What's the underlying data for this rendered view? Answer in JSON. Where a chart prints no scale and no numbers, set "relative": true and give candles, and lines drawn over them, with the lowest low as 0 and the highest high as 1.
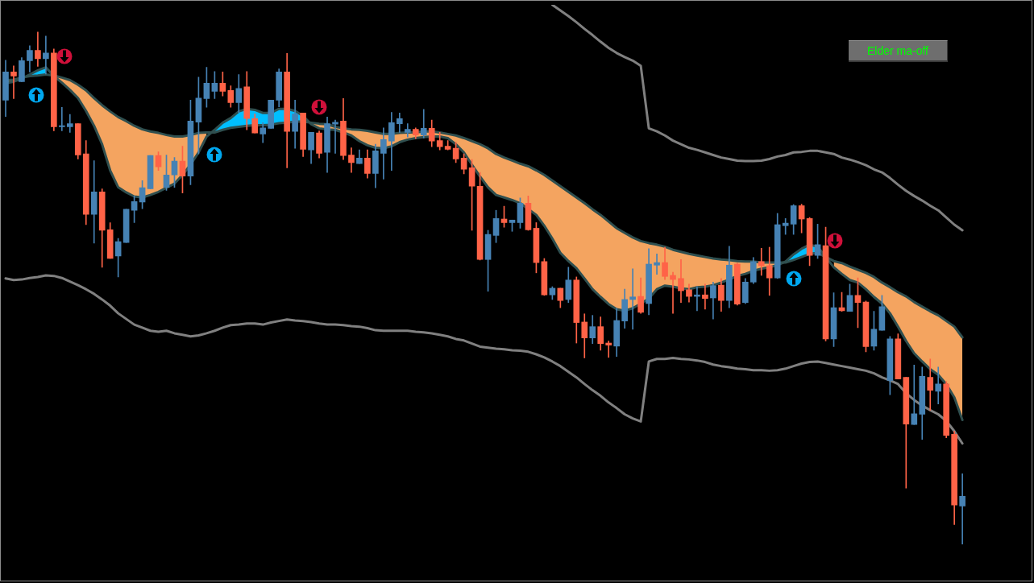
{
  "chart_data": {
    "type": "candlestick",
    "relative": true,
    "annotations": [
      "Elder ma-off"
    ],
    "categories": [
      null,
      null,
      null,
      null,
      null,
      null,
      null,
      null,
      null,
      null,
      null,
      null,
      null,
      null,
      null,
      null,
      null,
      null,
      null,
      null,
      null,
      null,
      null,
      null,
      null,
      null,
      null,
      null,
      null,
      null,
      null,
      null,
      null,
      null,
      null,
      null,
      null,
      null,
      null,
      null,
      null,
      null,
      null,
      null,
      null,
      null,
      null,
      null,
      null,
      null,
      null,
      null,
      null,
      null,
      null,
      null,
      null,
      null,
      null,
      null,
      null,
      null,
      null,
      null,
      null,
      null,
      null,
      null,
      null,
      null,
      null,
      null,
      null,
      null,
      null,
      null,
      null,
      null,
      null,
      null,
      null,
      null,
      null,
      null,
      null,
      null,
      null,
      null,
      null,
      null,
      null,
      null,
      null,
      null,
      null,
      null,
      null,
      null,
      null,
      null,
      null,
      null,
      null,
      null,
      null,
      null,
      null,
      null,
      null,
      null,
      null,
      null,
      null,
      null,
      null,
      null,
      null,
      null,
      null,
      null
    ],
    "ohlc": [
      [
        0.867,
        0.945,
        0.835,
        0.922
      ],
      [
        0.922,
        0.934,
        0.87,
        0.914
      ],
      [
        0.903,
        0.95,
        0.903,
        0.944
      ],
      [
        0.944,
        0.973,
        0.922,
        0.964
      ],
      [
        0.964,
        1,
        0.933,
        0.948
      ],
      [
        0.948,
        0.992,
        0.918,
        0.959
      ],
      [
        0.959,
        0.967,
        0.807,
        0.815
      ],
      [
        0.815,
        0.853,
        0.807,
        0.817
      ],
      [
        0.815,
        0.839,
        0.804,
        0.821
      ],
      [
        0.821,
        0.821,
        0.752,
        0.76
      ],
      [
        0.762,
        0.788,
        0.624,
        0.644
      ],
      [
        0.644,
        0.749,
        0.588,
        0.688
      ],
      [
        0.688,
        0.694,
        0.541,
        0.613
      ],
      [
        0.614,
        0.628,
        0.558,
        0.558
      ],
      [
        0.563,
        0.597,
        0.522,
        0.591
      ],
      [
        0.589,
        0.654,
        0.589,
        0.654
      ],
      [
        0.652,
        0.68,
        0.628,
        0.669
      ],
      [
        0.668,
        0.71,
        0.655,
        0.696
      ],
      [
        0.694,
        0.759,
        0.694,
        0.759
      ],
      [
        0.759,
        0.766,
        0.73,
        0.737
      ],
      [
        0.697,
        0.76,
        0.691,
        0.721
      ],
      [
        0.721,
        0.755,
        0.697,
        0.748
      ],
      [
        0.748,
        0.777,
        0.686,
        0.719
      ],
      [
        0.719,
        0.867,
        0.702,
        0.826
      ],
      [
        0.824,
        0.912,
        0.762,
        0.871
      ],
      [
        0.87,
        0.931,
        0.853,
        0.9
      ],
      [
        0.884,
        0.923,
        0.87,
        0.9
      ],
      [
        0.9,
        0.922,
        0.875,
        0.884
      ],
      [
        0.886,
        0.895,
        0.853,
        0.862
      ],
      [
        0.862,
        0.917,
        0.843,
        0.89
      ],
      [
        0.893,
        0.923,
        0.809,
        0.831
      ],
      [
        0.831,
        0.84,
        0.803,
        0.803
      ],
      [
        0.801,
        0.823,
        0.784,
        0.813
      ],
      [
        0.812,
        0.867,
        0.812,
        0.867
      ],
      [
        0.867,
        0.928,
        0.854,
        0.922
      ],
      [
        0.922,
        0.958,
        0.735,
        0.806
      ],
      [
        0.806,
        0.867,
        0.773,
        0.84
      ],
      [
        0.842,
        0.842,
        0.757,
        0.771
      ],
      [
        0.77,
        0.804,
        0.743,
        0.804
      ],
      [
        0.803,
        0.807,
        0.754,
        0.763
      ],
      [
        0.765,
        0.834,
        0.726,
        0.821
      ],
      [
        0.82,
        0.828,
        0.763,
        0.824
      ],
      [
        0.826,
        0.87,
        0.751,
        0.759
      ],
      [
        0.76,
        0.774,
        0.726,
        0.745
      ],
      [
        0.743,
        0.77,
        0.743,
        0.754
      ],
      [
        0.754,
        0.77,
        0.715,
        0.724
      ],
      [
        0.724,
        0.781,
        0.696,
        0.768
      ],
      [
        0.763,
        0.813,
        0.713,
        0.79
      ],
      [
        0.787,
        0.843,
        0.73,
        0.823
      ],
      [
        0.821,
        0.842,
        0.804,
        0.831
      ],
      [
        0.804,
        0.821,
        0.795,
        0.81
      ],
      [
        0.81,
        0.813,
        0.792,
        0.799
      ],
      [
        0.799,
        0.849,
        0.793,
        0.812
      ],
      [
        0.812,
        0.828,
        0.776,
        0.787
      ],
      [
        0.788,
        0.804,
        0.77,
        0.776
      ],
      [
        0.777,
        0.788,
        0.77,
        0.771
      ],
      [
        0.773,
        0.785,
        0.745,
        0.752
      ],
      [
        0.754,
        0.762,
        0.723,
        0.732
      ],
      [
        0.735,
        0.751,
        0.613,
        0.699
      ],
      [
        0.699,
        0.726,
        0.555,
        0.556
      ],
      [
        0.556,
        0.613,
        0.494,
        0.605
      ],
      [
        0.603,
        0.652,
        0.589,
        0.636
      ],
      [
        0.635,
        0.66,
        0.619,
        0.628
      ],
      [
        0.628,
        0.633,
        0.611,
        0.633
      ],
      [
        0.628,
        0.676,
        0.617,
        0.666
      ],
      [
        0.666,
        0.68,
        0.613,
        0.614
      ],
      [
        0.617,
        0.628,
        0.53,
        0.55
      ],
      [
        0.552,
        0.558,
        0.486,
        0.487
      ],
      [
        0.487,
        0.503,
        0.478,
        0.5
      ],
      [
        0.5,
        0.5,
        0.462,
        0.476
      ],
      [
        0.478,
        0.541,
        0.472,
        0.516
      ],
      [
        0.516,
        0.522,
        0.393,
        0.433
      ],
      [
        0.434,
        0.45,
        0.364,
        0.403
      ],
      [
        0.403,
        0.447,
        0.392,
        0.425
      ],
      [
        0.425,
        0.444,
        0.379,
        0.392
      ],
      [
        0.393,
        0.397,
        0.365,
        0.389
      ],
      [
        0.387,
        0.461,
        0.367,
        0.437
      ],
      [
        0.436,
        0.498,
        0.422,
        0.478
      ],
      [
        0.478,
        0.538,
        0.42,
        0.483
      ],
      [
        0.484,
        0.52,
        0.451,
        0.453
      ],
      [
        0.47,
        0.577,
        0.448,
        0.547
      ],
      [
        0.545,
        0.567,
        0.527,
        0.55
      ],
      [
        0.55,
        0.58,
        0.517,
        0.523
      ],
      [
        0.525,
        0.531,
        0.451,
        0.517
      ],
      [
        0.519,
        0.556,
        0.472,
        0.495
      ],
      [
        0.497,
        0.508,
        0.473,
        0.484
      ],
      [
        0.484,
        0.503,
        0.456,
        0.487
      ],
      [
        0.487,
        0.508,
        0.459,
        0.48
      ],
      [
        0.481,
        0.512,
        0.44,
        0.505
      ],
      [
        0.506,
        0.519,
        0.455,
        0.476
      ],
      [
        0.476,
        0.582,
        0.462,
        0.545
      ],
      [
        0.547,
        0.549,
        0.467,
        0.469
      ],
      [
        0.472,
        0.519,
        0.47,
        0.512
      ],
      [
        0.512,
        0.56,
        0.509,
        0.552
      ],
      [
        0.552,
        0.578,
        0.525,
        0.544
      ],
      [
        0.544,
        0.58,
        0.486,
        0.52
      ],
      [
        0.52,
        0.646,
        0.519,
        0.624
      ],
      [
        0.622,
        0.636,
        0.605,
        0.627
      ],
      [
        0.625,
        0.663,
        0.605,
        0.661
      ],
      [
        0.661,
        0.664,
        0.608,
        0.635
      ],
      [
        0.636,
        0.638,
        0.544,
        0.564
      ],
      [
        0.564,
        0.625,
        0.558,
        0.585
      ],
      [
        0.583,
        0.619,
        0.397,
        0.401
      ],
      [
        0.401,
        0.491,
        0.386,
        0.462
      ],
      [
        0.462,
        0.492,
        0.455,
        0.456
      ],
      [
        0.455,
        0.508,
        0.455,
        0.486
      ],
      [
        0.486,
        0.52,
        0.423,
        0.472
      ],
      [
        0.473,
        0.475,
        0.376,
        0.386
      ],
      [
        0.387,
        0.455,
        0.379,
        0.42
      ],
      [
        0.418,
        0.486,
        0.418,
        0.464
      ],
      [
        0.32,
        0.406,
        0.292,
        0.401
      ],
      [
        0.401,
        0.411,
        0.323,
        0.323
      ],
      [
        0.326,
        0.326,
        0.11,
        0.235
      ],
      [
        0.234,
        0.35,
        0.234,
        0.255
      ],
      [
        0.254,
        0.346,
        0.205,
        0.328
      ],
      [
        0.326,
        0.362,
        0.262,
        0.301
      ],
      [
        0.299,
        0.346,
        0.274,
        0.313
      ],
      [
        0.313,
        0.318,
        0.208,
        0.213
      ],
      [
        0.215,
        0.221,
        0.039,
        0.077
      ],
      [
        0.075,
        0.138,
        0,
        0.094
      ]
    ],
    "colors": [
      "#4682b4",
      "#ff6347",
      "#4682b4",
      "#4682b4",
      "#ff6347",
      "#4682b4",
      "#ff6347",
      "#4682b4",
      "#4682b4",
      "#ff6347",
      "#ff6347",
      "#4682b4",
      "#ff6347",
      "#ff6347",
      "#4682b4",
      "#4682b4",
      "#4682b4",
      "#4682b4",
      "#4682b4",
      "#ff6347",
      "#4682b4",
      "#4682b4",
      "#ff6347",
      "#4682b4",
      "#4682b4",
      "#4682b4",
      "#4682b4",
      "#ff6347",
      "#ff6347",
      "#4682b4",
      "#ff6347",
      "#ff6347",
      "#4682b4",
      "#4682b4",
      "#4682b4",
      "#ff6347",
      "#4682b4",
      "#ff6347",
      "#4682b4",
      "#ff6347",
      "#4682b4",
      "#4682b4",
      "#ff6347",
      "#ff6347",
      "#4682b4",
      "#ff6347",
      "#4682b4",
      "#4682b4",
      "#4682b4",
      "#4682b4",
      "#4682b4",
      "#ff6347",
      "#4682b4",
      "#ff6347",
      "#ff6347",
      "#ff6347",
      "#ff6347",
      "#ff6347",
      "#ff6347",
      "#ff6347",
      "#4682b4",
      "#4682b4",
      "#ff6347",
      "#4682b4",
      "#4682b4",
      "#ff6347",
      "#ff6347",
      "#ff6347",
      "#4682b4",
      "#ff6347",
      "#4682b4",
      "#ff6347",
      "#ff6347",
      "#4682b4",
      "#ff6347",
      "#ff6347",
      "#4682b4",
      "#4682b4",
      "#4682b4",
      "#ff6347",
      "#4682b4",
      "#4682b4",
      "#ff6347",
      "#ff6347",
      "#ff6347",
      "#ff6347",
      "#4682b4",
      "#ff6347",
      "#4682b4",
      "#ff6347",
      "#4682b4",
      "#ff6347",
      "#4682b4",
      "#4682b4",
      "#ff6347",
      "#ff6347",
      "#4682b4",
      "#4682b4",
      "#4682b4",
      "#ff6347",
      "#ff6347",
      "#4682b4",
      "#ff6347",
      "#4682b4",
      "#ff6347",
      "#4682b4",
      "#ff6347",
      "#ff6347",
      "#4682b4",
      "#4682b4",
      "#4682b4",
      "#ff6347",
      "#ff6347",
      "#4682b4",
      "#4682b4",
      "#ff6347",
      "#4682b4",
      "#ff6347",
      "#ff6347",
      "#4682b4"
    ],
    "series": [
      {
        "type": "line",
        "color": "#808080",
        "values": [
          null,
          null,
          null,
          null,
          null,
          null,
          null,
          null,
          null,
          null,
          null,
          null,
          null,
          null,
          null,
          null,
          null,
          null,
          null,
          null,
          null,
          null,
          null,
          null,
          null,
          null,
          null,
          null,
          null,
          null,
          null,
          null,
          null,
          null,
          null,
          null,
          null,
          null,
          null,
          null,
          null,
          null,
          null,
          null,
          null,
          null,
          null,
          null,
          null,
          null,
          null,
          null,
          null,
          null,
          null,
          null,
          null,
          null,
          null,
          null,
          null,
          null,
          null,
          null,
          null,
          null,
          null,
          null,
          1.053,
          1.042,
          1.031,
          1.019,
          1.006,
          0.994,
          0.981,
          0.969,
          0.959,
          0.951,
          0.944,
          0.934,
          0.812,
          0.806,
          0.798,
          0.788,
          0.781,
          0.774,
          0.77,
          0.765,
          0.76,
          0.755,
          0.752,
          0.749,
          0.748,
          0.748,
          0.749,
          0.752,
          0.757,
          0.76,
          0.765,
          0.766,
          0.768,
          0.768,
          0.765,
          0.762,
          0.755,
          0.751,
          0.746,
          0.74,
          0.732,
          0.726,
          0.715,
          0.702,
          0.69,
          0.68,
          0.671,
          0.661,
          0.652,
          0.638,
          0.624,
          0.613
        ]
      },
      {
        "type": "line",
        "color": "#808080",
        "values": [
          0.519,
          0.516,
          0.517,
          0.52,
          0.522,
          0.525,
          0.524,
          0.52,
          0.513,
          0.506,
          0.498,
          0.489,
          0.478,
          0.466,
          0.451,
          0.44,
          0.429,
          0.423,
          0.417,
          0.415,
          0.417,
          0.412,
          0.409,
          0.406,
          0.408,
          0.412,
          0.417,
          0.423,
          0.428,
          0.429,
          0.431,
          0.431,
          0.429,
          0.433,
          0.436,
          0.439,
          0.437,
          0.436,
          0.434,
          0.431,
          0.429,
          0.429,
          0.428,
          0.426,
          0.425,
          0.422,
          0.418,
          0.417,
          0.417,
          0.417,
          0.417,
          0.415,
          0.414,
          0.412,
          0.409,
          0.406,
          0.401,
          0.398,
          0.392,
          0.386,
          0.384,
          0.382,
          0.381,
          0.379,
          0.378,
          0.376,
          0.371,
          0.365,
          0.357,
          0.348,
          0.337,
          0.326,
          0.313,
          0.301,
          0.29,
          0.277,
          0.266,
          0.254,
          0.246,
          0.24,
          0.357,
          0.362,
          0.362,
          0.364,
          0.362,
          0.361,
          0.359,
          0.356,
          0.351,
          0.348,
          0.346,
          0.343,
          0.342,
          0.34,
          0.34,
          0.339,
          0.34,
          0.343,
          0.348,
          0.353,
          0.356,
          0.357,
          0.354,
          0.351,
          0.348,
          0.345,
          0.342,
          0.339,
          0.334,
          0.326,
          0.32,
          0.313,
          0.295,
          0.282,
          0.271,
          0.262,
          0.254,
          0.241,
          0.221,
          0.197
        ]
      },
      {
        "type": "line",
        "color": "#2f4f4f",
        "values": [
          0.906,
          0.907,
          0.911,
          0.914,
          0.915,
          0.917,
          0.915,
          0.911,
          0.906,
          0.897,
          0.886,
          0.871,
          0.857,
          0.845,
          0.834,
          0.826,
          0.817,
          0.81,
          0.806,
          0.803,
          0.799,
          0.796,
          0.796,
          0.799,
          0.803,
          0.804,
          0.804,
          0.809,
          0.813,
          0.815,
          0.817,
          0.818,
          0.818,
          0.819,
          0.822,
          0.823,
          0.825,
          0.825,
          0.823,
          0.821,
          0.82,
          0.815,
          0.812,
          0.81,
          0.809,
          0.807,
          0.804,
          0.801,
          0.801,
          0.803,
          0.804,
          0.804,
          0.806,
          0.806,
          0.804,
          0.801,
          0.798,
          0.793,
          0.787,
          0.781,
          0.773,
          0.762,
          0.755,
          0.749,
          0.743,
          0.738,
          0.73,
          0.721,
          0.71,
          0.699,
          0.688,
          0.677,
          0.666,
          0.654,
          0.643,
          0.63,
          0.617,
          0.608,
          0.599,
          0.592,
          0.588,
          0.585,
          0.581,
          0.575,
          0.571,
          0.567,
          0.564,
          0.561,
          0.558,
          0.556,
          0.555,
          0.553,
          0.552,
          0.552,
          0.55,
          0.55,
          0.55,
          0.55,
          0.555,
          0.561,
          0.567,
          0.569,
          null,
          0.553,
          0.549,
          0.542,
          0.536,
          0.53,
          0.522,
          0.511,
          0.502,
          0.492,
          0.484,
          0.473,
          0.464,
          0.455,
          0.447,
          0.436,
          0.425,
          0.404
        ]
      },
      {
        "type": "line",
        "color": "#2f4f4f",
        "values": [
          0.9,
          0.903,
          0.909,
          0.917,
          0.925,
          0.931,
          0.914,
          0.901,
          0.887,
          0.871,
          0.846,
          0.817,
          0.781,
          0.73,
          0.697,
          0.687,
          0.679,
          0.677,
          0.682,
          0.688,
          0.696,
          0.704,
          0.721,
          0.741,
          0.765,
          0.796,
          0.809,
          0.823,
          0.832,
          0.845,
          0.85,
          0.848,
          0.842,
          0.842,
          0.85,
          0.85,
          0.846,
          0.836,
          0.82,
          0.812,
          0.81,
          0.809,
          0.804,
          0.798,
          0.787,
          0.779,
          0.774,
          0.773,
          0.777,
          0.785,
          0.79,
          0.793,
          0.795,
          0.796,
          0.796,
          0.793,
          0.781,
          0.765,
          0.741,
          0.718,
          0.697,
          0.682,
          0.677,
          0.672,
          0.666,
          null,
          0.643,
          0.622,
          0.597,
          0.569,
          0.553,
          0.539,
          0.519,
          0.498,
          0.483,
          0.469,
          0.459,
          0.456,
          0.461,
          0.47,
          0.48,
          0.498,
          0.505,
          0.503,
          0.5,
          0.498,
          0.502,
          0.503,
          0.506,
          0.511,
          0.517,
          0.524,
          0.528,
          0.534,
          0.538,
          0.541,
          0.545,
          0.552,
          0.566,
          0.577,
          0.585,
          0.581,
          null,
          0.541,
          0.528,
          0.516,
          0.511,
          0.498,
          0.483,
          0.47,
          0.451,
          0.425,
          0.397,
          0.373,
          0.357,
          0.342,
          0.331,
          0.313,
          0.287,
          0.243
        ]
      },
      {
        "type": "line",
        "color": "#f4a460",
        "values": [
          null,
          null,
          null,
          null,
          null,
          null,
          null,
          null,
          null,
          null,
          null,
          null,
          null,
          null,
          null,
          null,
          null,
          null,
          null,
          null,
          null,
          null,
          null,
          null,
          null,
          null,
          null,
          null,
          null,
          null,
          null,
          null,
          null,
          null,
          null,
          null,
          null,
          null,
          null,
          null,
          null,
          null,
          null,
          null,
          null,
          null,
          null,
          null,
          null,
          null,
          null,
          null,
          null,
          null,
          null,
          null,
          null,
          null,
          null,
          null,
          null,
          null,
          null,
          null,
          null,
          null,
          null,
          null,
          null,
          null,
          null,
          null,
          null,
          null,
          null,
          null,
          null,
          null,
          null,
          null,
          null,
          null,
          null,
          null,
          null,
          null,
          null,
          null,
          null,
          null,
          null,
          null,
          null,
          null,
          null,
          null,
          null,
          null,
          null,
          null,
          null,
          null,
          null,
          null,
          null,
          null,
          null,
          null,
          null,
          null,
          null,
          null,
          null,
          null,
          null,
          null,
          null,
          null,
          null,
          null
        ],
        "lower": [
          0.9,
          0.903,
          0.909,
          null,
          null,
          null,
          0.914,
          0.901,
          0.887,
          0.871,
          0.846,
          0.817,
          0.781,
          0.73,
          0.697,
          0.687,
          0.679,
          0.677,
          0.682,
          0.688,
          0.696,
          0.704,
          0.721,
          0.741,
          0.765,
          0.796,
          null,
          null,
          null,
          null,
          null,
          null,
          null,
          null,
          null,
          null,
          null,
          null,
          0.82,
          0.812,
          0.81,
          0.809,
          0.804,
          0.798,
          0.787,
          0.779,
          0.774,
          0.773,
          0.777,
          0.785,
          0.79,
          0.793,
          0.795,
          0.796,
          0.796,
          0.793,
          0.781,
          0.765,
          0.741,
          0.718,
          0.697,
          0.682,
          0.677,
          0.672,
          0.666,
          0.658,
          0.643,
          0.622,
          0.597,
          0.569,
          0.553,
          0.539,
          0.519,
          0.498,
          0.483,
          0.469,
          0.459,
          0.456,
          0.461,
          0.47,
          0.48,
          0.498,
          0.505,
          0.503,
          0.5,
          0.498,
          0.502,
          0.503,
          0.506,
          0.511,
          0.517,
          0.524,
          0.528,
          0.534,
          0.538,
          0.541,
          0.545,
          null,
          null,
          null,
          null,
          null,
          null,
          0.541,
          0.528,
          0.516,
          0.511,
          0.498,
          0.483,
          0.47,
          0.451,
          0.425,
          0.397,
          0.373,
          0.357,
          0.342,
          0.331,
          0.313,
          0.287,
          0.243
        ],
        "upper": [
          0.906,
          0.907,
          0.911,
          null,
          null,
          null,
          0.915,
          0.911,
          0.906,
          0.897,
          0.886,
          0.871,
          0.857,
          0.845,
          0.834,
          0.826,
          0.817,
          0.81,
          0.806,
          0.803,
          0.799,
          0.796,
          0.796,
          0.799,
          0.803,
          0.804,
          null,
          null,
          null,
          null,
          null,
          null,
          null,
          null,
          null,
          null,
          null,
          null,
          0.823,
          0.821,
          0.82,
          0.815,
          0.812,
          0.81,
          0.809,
          0.807,
          0.804,
          0.801,
          0.801,
          0.803,
          0.804,
          0.804,
          0.806,
          0.806,
          0.804,
          0.801,
          0.798,
          0.793,
          0.787,
          0.781,
          0.773,
          0.762,
          0.755,
          0.749,
          0.743,
          0.738,
          0.73,
          0.721,
          0.71,
          0.699,
          0.688,
          0.677,
          0.666,
          0.654,
          0.643,
          0.63,
          0.617,
          0.608,
          0.599,
          0.592,
          0.588,
          0.585,
          0.581,
          0.575,
          0.571,
          0.567,
          0.564,
          0.561,
          0.558,
          0.556,
          0.555,
          0.553,
          0.552,
          0.552,
          0.55,
          0.55,
          0.55,
          null,
          null,
          null,
          null,
          null,
          null,
          0.553,
          0.549,
          0.542,
          0.536,
          0.53,
          0.522,
          0.511,
          0.502,
          0.492,
          0.484,
          0.473,
          0.464,
          0.455,
          0.447,
          0.436,
          0.425,
          0.404
        ]
      },
      {
        "type": "line",
        "color": "#00bfff",
        "values": [
          null,
          null,
          null,
          null,
          null,
          null,
          null,
          null,
          null,
          null,
          null,
          null,
          null,
          null,
          null,
          null,
          null,
          null,
          null,
          null,
          null,
          null,
          null,
          null,
          null,
          null,
          null,
          null,
          null,
          null,
          null,
          null,
          null,
          null,
          null,
          null,
          null,
          null,
          null,
          null,
          null,
          null,
          null,
          null,
          null,
          null,
          null,
          null,
          null,
          null,
          null,
          null,
          null,
          null,
          null,
          null,
          null,
          null,
          null,
          null,
          null,
          null,
          null,
          null,
          null,
          null,
          null,
          null,
          null,
          null,
          null,
          null,
          null,
          null,
          null,
          null,
          null,
          null,
          null,
          null,
          null,
          null,
          null,
          null,
          null,
          null,
          null,
          null,
          null,
          null,
          null,
          null,
          null,
          null,
          null,
          null,
          null,
          null,
          null,
          null,
          null,
          null,
          null,
          null,
          null,
          null,
          null,
          null,
          null,
          null,
          null,
          null,
          null,
          null,
          null,
          null,
          null,
          null,
          null,
          null
        ],
        "lower": [
          null,
          null,
          null,
          0.914,
          0.915,
          0.917,
          null,
          null,
          null,
          null,
          null,
          null,
          null,
          null,
          null,
          null,
          null,
          null,
          null,
          null,
          null,
          null,
          null,
          null,
          null,
          null,
          0.804,
          0.809,
          0.813,
          0.815,
          0.817,
          0.818,
          0.818,
          0.819,
          0.822,
          0.823,
          0.825,
          0.825,
          null,
          null,
          null,
          null,
          null,
          null,
          null,
          null,
          null,
          null,
          null,
          null,
          null,
          null,
          null,
          null,
          null,
          null,
          null,
          null,
          null,
          null,
          null,
          null,
          null,
          null,
          null,
          null,
          null,
          null,
          null,
          null,
          null,
          null,
          null,
          null,
          null,
          null,
          null,
          null,
          null,
          null,
          null,
          null,
          null,
          null,
          null,
          null,
          null,
          null,
          null,
          null,
          null,
          null,
          null,
          null,
          null,
          null,
          null,
          0.55,
          0.555,
          0.561,
          0.567,
          0.569,
          null,
          null,
          null,
          null,
          null,
          null,
          null,
          null,
          null,
          null,
          null,
          null,
          null,
          null,
          null,
          null,
          null,
          null
        ],
        "upper": [
          null,
          null,
          null,
          0.917,
          0.925,
          0.931,
          null,
          null,
          null,
          null,
          null,
          null,
          null,
          null,
          null,
          null,
          null,
          null,
          null,
          null,
          null,
          null,
          null,
          null,
          null,
          null,
          0.809,
          0.823,
          0.832,
          0.845,
          0.85,
          0.848,
          0.842,
          0.842,
          0.85,
          0.85,
          0.846,
          0.836,
          null,
          null,
          null,
          null,
          null,
          null,
          null,
          null,
          null,
          null,
          null,
          null,
          null,
          null,
          null,
          null,
          null,
          null,
          null,
          null,
          null,
          null,
          null,
          null,
          null,
          null,
          null,
          null,
          null,
          null,
          null,
          null,
          null,
          null,
          null,
          null,
          null,
          null,
          null,
          null,
          null,
          null,
          null,
          null,
          null,
          null,
          null,
          null,
          null,
          null,
          null,
          null,
          null,
          null,
          null,
          null,
          null,
          null,
          null,
          0.552,
          0.566,
          0.577,
          0.585,
          0.581,
          null,
          null,
          null,
          null,
          null,
          null,
          null,
          null,
          null,
          null,
          null,
          null,
          null,
          null,
          null,
          null,
          null,
          null
        ]
      }
    ]
  }
}
